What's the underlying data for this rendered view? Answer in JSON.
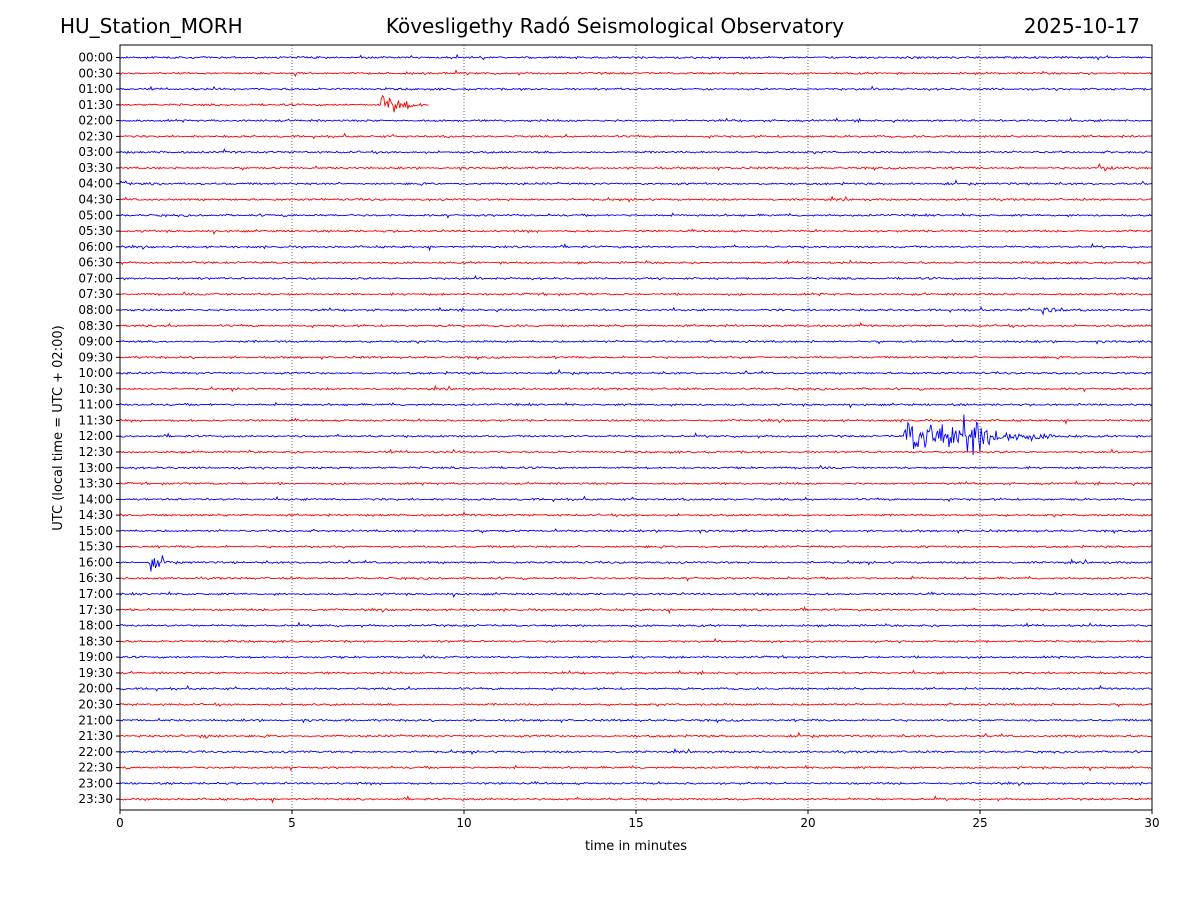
{
  "header": {
    "station": "HU_Station_MORH",
    "title": "Kövesligethy Radó Seismological Observatory",
    "date": "2025-10-17"
  },
  "chart_data": {
    "type": "line",
    "title": "Kövesligethy Radó Seismological Observatory",
    "xlabel": "time in minutes",
    "ylabel": "UTC (local time = UTC + 02:00)",
    "xlim": [
      0,
      30
    ],
    "x_ticks": [
      "0",
      "5",
      "10",
      "15",
      "20",
      "25",
      "30"
    ],
    "grid": "vertical dotted lines at 5-minute intervals",
    "colors": {
      "even_rows": "#0000ff",
      "odd_rows": "#ff0000",
      "grid": "#000000"
    },
    "rows": [
      "00:00",
      "00:30",
      "01:00",
      "01:30",
      "02:00",
      "02:30",
      "03:00",
      "03:30",
      "04:00",
      "04:30",
      "05:00",
      "05:30",
      "06:00",
      "06:30",
      "07:00",
      "07:30",
      "08:00",
      "08:30",
      "09:00",
      "09:30",
      "10:00",
      "10:30",
      "11:00",
      "11:30",
      "12:00",
      "12:30",
      "13:00",
      "13:30",
      "14:00",
      "14:30",
      "15:00",
      "15:30",
      "16:00",
      "16:30",
      "17:00",
      "17:30",
      "18:00",
      "18:30",
      "19:00",
      "19:30",
      "20:00",
      "20:30",
      "21:00",
      "21:30",
      "22:00",
      "22:30",
      "23:00",
      "23:30"
    ],
    "events": [
      {
        "row": "01:30",
        "start_min": 7.6,
        "duration_min": 1.4,
        "amplitude": 0.85
      },
      {
        "row": "03:30",
        "start_min": 28.4,
        "duration_min": 0.9,
        "amplitude": 0.25
      },
      {
        "row": "04:00",
        "start_min": 0.0,
        "duration_min": 1.6,
        "amplitude": 0.2
      },
      {
        "row": "08:00",
        "start_min": 26.8,
        "duration_min": 0.9,
        "amplitude": 0.3
      },
      {
        "row": "12:00",
        "start_min": 22.8,
        "duration_min": 5.5,
        "amplitude": 1.3
      },
      {
        "row": "12:00",
        "start_min": 24.5,
        "duration_min": 1.5,
        "amplitude": 1.2
      },
      {
        "row": "16:00",
        "start_min": 0.85,
        "duration_min": 0.8,
        "amplitude": 0.65
      },
      {
        "row": "21:30",
        "start_min": 2.3,
        "duration_min": 0.8,
        "amplitude": 0.3
      }
    ]
  }
}
